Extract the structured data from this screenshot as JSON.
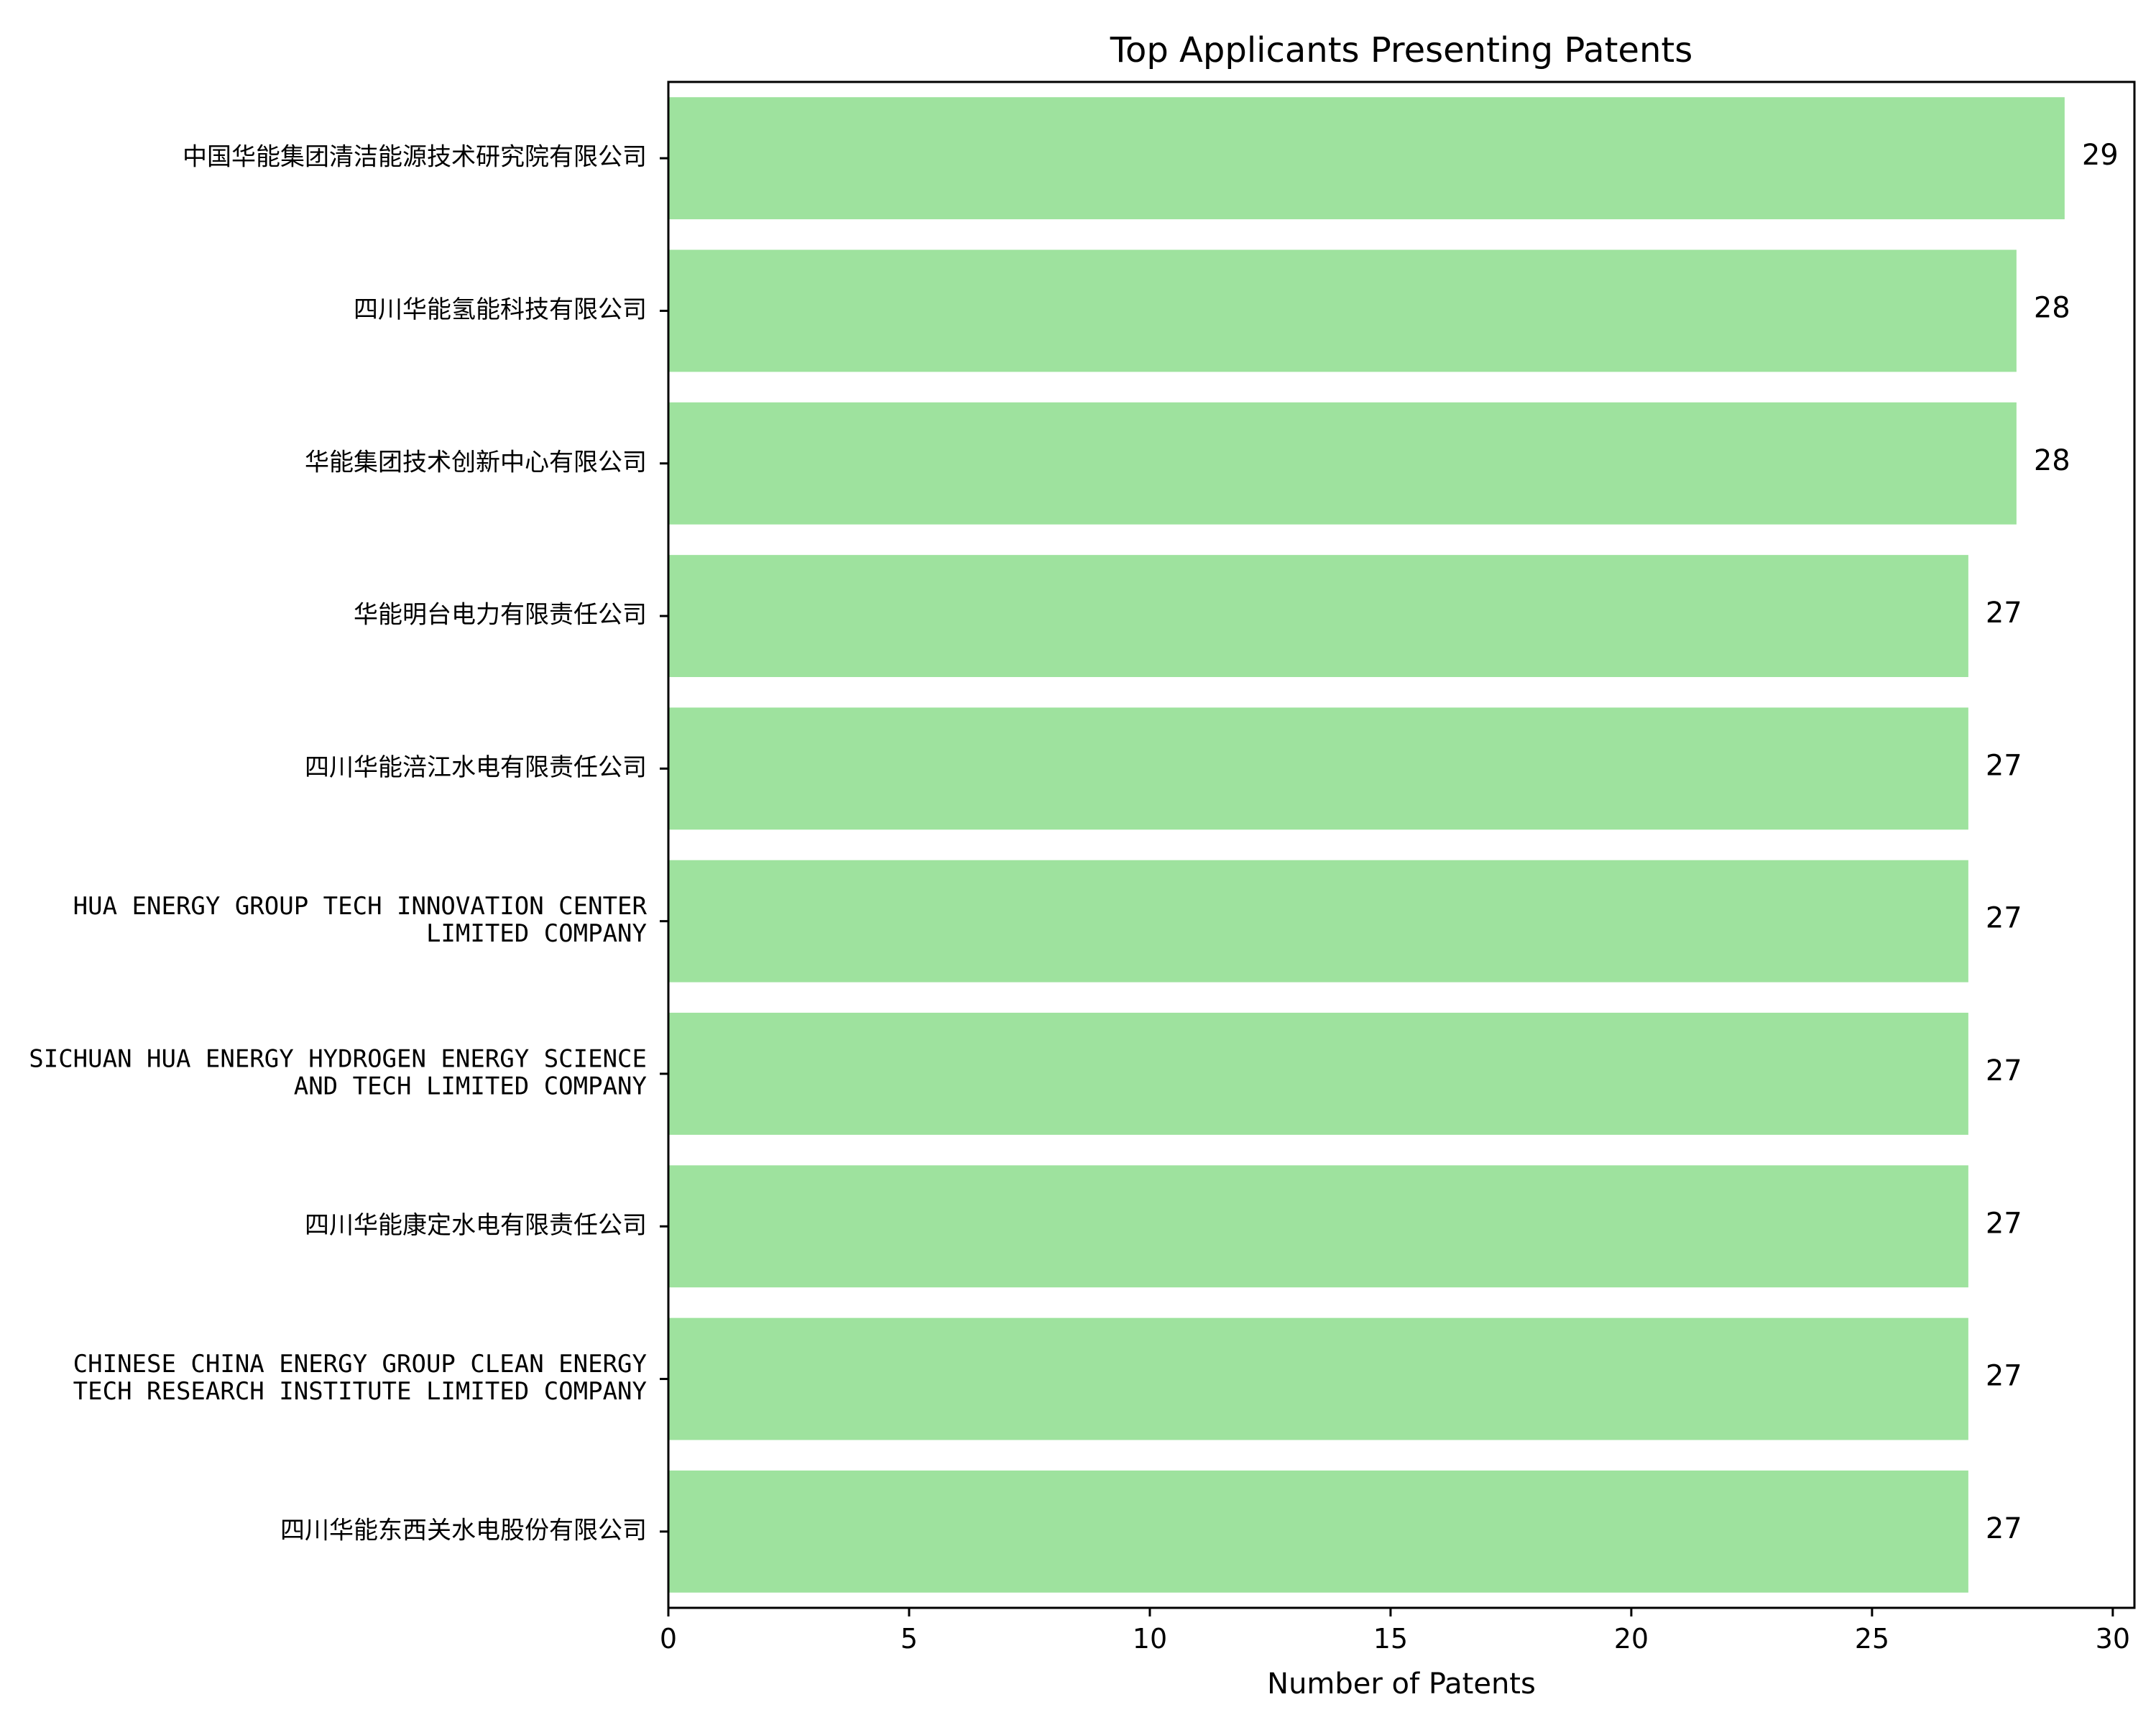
{
  "chart_data": {
    "type": "bar",
    "orientation": "horizontal",
    "title": "Top Applicants Presenting Patents",
    "xlabel": "Number of Patents",
    "xlim": [
      0,
      30.45
    ],
    "xticks": [
      0,
      5,
      10,
      15,
      20,
      25,
      30
    ],
    "bar_color": "#9ee29e",
    "categories": [
      [
        "中国华能集团清洁能源技术研究院有限公司"
      ],
      [
        "四川华能氢能科技有限公司"
      ],
      [
        "华能集团技术创新中心有限公司"
      ],
      [
        "华能明台电力有限责任公司"
      ],
      [
        "四川华能涪江水电有限责任公司"
      ],
      [
        "HUA ENERGY GROUP TECH INNOVATION CENTER",
        "LIMITED COMPANY"
      ],
      [
        "SICHUAN HUA ENERGY HYDROGEN ENERGY SCIENCE",
        "AND TECH LIMITED COMPANY"
      ],
      [
        "四川华能康定水电有限责任公司"
      ],
      [
        "CHINESE CHINA ENERGY GROUP CLEAN ENERGY",
        "TECH RESEARCH INSTITUTE LIMITED COMPANY"
      ],
      [
        "四川华能东西关水电股份有限公司"
      ]
    ],
    "values": [
      29,
      28,
      28,
      27,
      27,
      27,
      27,
      27,
      27,
      27
    ],
    "grid": false,
    "legend": "none"
  }
}
